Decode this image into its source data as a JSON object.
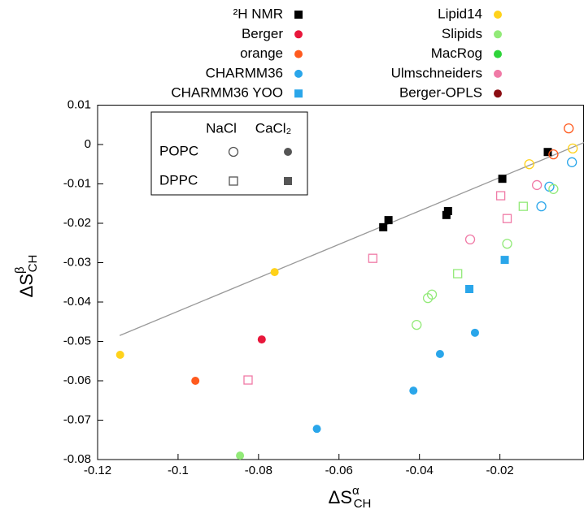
{
  "chart_data": {
    "type": "scatter",
    "x_label": {
      "text": "ΔS",
      "sup": "α",
      "sub": "CH"
    },
    "y_label": {
      "text": "ΔS",
      "sup": "β",
      "sub": "CH"
    },
    "xlim": [
      -0.12,
      0.0009
    ],
    "ylim": [
      -0.08,
      0.01
    ],
    "xticks": [
      -0.12,
      -0.1,
      -0.08,
      -0.06,
      -0.04,
      -0.02
    ],
    "yticks": [
      0.01,
      0,
      -0.01,
      -0.02,
      -0.03,
      -0.04,
      -0.05,
      -0.06,
      -0.07,
      -0.08
    ],
    "fit_line": {
      "color": "#999999",
      "x": [
        -0.1145,
        0.0009
      ],
      "values": [
        -0.0485,
        0.0005
      ]
    },
    "marker_legend": {
      "columns": [
        "NaCl",
        "CaCl₂"
      ],
      "rows": [
        "POPC",
        "DPPC"
      ],
      "markers": [
        [
          "open-circle",
          "filled-circle"
        ],
        [
          "open-square",
          "filled-square"
        ]
      ]
    },
    "series": [
      {
        "name": "²H NMR",
        "color": "#000000",
        "marker": "filled-square",
        "x": [
          -0.0081,
          -0.0194,
          -0.0333,
          -0.0329,
          -0.0477,
          -0.049
        ],
        "values": [
          -0.0019,
          -0.0087,
          -0.0179,
          -0.0169,
          -0.0192,
          -0.021
        ],
        "markers": [
          "filled-square",
          "filled-square",
          "filled-square",
          "filled-square",
          "filled-square",
          "filled-square"
        ]
      },
      {
        "name": "Berger",
        "color": "#e8173b",
        "marker": "filled-circle",
        "x": [
          -0.0792
        ],
        "values": [
          -0.0495
        ],
        "markers": [
          "filled-circle"
        ]
      },
      {
        "name": "orange",
        "color": "#ff5a1e",
        "marker": "filled-circle",
        "x": [
          -0.0957,
          -0.0029,
          -0.0067
        ],
        "values": [
          -0.06,
          0.0041,
          -0.0025
        ],
        "markers": [
          "filled-circle",
          "open-circle",
          "open-circle"
        ]
      },
      {
        "name": "CHARMM36",
        "color": "#2aa6ea",
        "marker": "filled-circle",
        "x": [
          -0.0655,
          -0.0415,
          -0.0349,
          -0.0262,
          -0.0077,
          -0.0097,
          -0.0021
        ],
        "values": [
          -0.0722,
          -0.0625,
          -0.0532,
          -0.0478,
          -0.0107,
          -0.0157,
          -0.0045
        ],
        "markers": [
          "filled-circle",
          "filled-circle",
          "filled-circle",
          "filled-circle",
          "open-circle",
          "open-circle",
          "open-circle"
        ]
      },
      {
        "name": "CHARMM36 YOO",
        "color": "#2aa6ea",
        "marker": "filled-square",
        "x": [
          -0.0188,
          -0.0276
        ],
        "values": [
          -0.0293,
          -0.0367
        ],
        "markers": [
          "filled-square",
          "filled-square"
        ]
      },
      {
        "name": "Lipid14",
        "color": "#ffd21a",
        "marker": "filled-circle",
        "x": [
          -0.1144,
          -0.076,
          -0.0127,
          -0.0019
        ],
        "values": [
          -0.0534,
          -0.0324,
          -0.005,
          -0.001
        ],
        "markers": [
          "filled-circle",
          "filled-circle",
          "open-circle",
          "open-circle"
        ]
      },
      {
        "name": "Slipids",
        "color": "#92ea78",
        "marker": "filled-circle",
        "x": [
          -0.0846,
          -0.0407,
          -0.0379,
          -0.0369,
          -0.0182,
          -0.0067,
          -0.0305,
          -0.0142
        ],
        "values": [
          -0.079,
          -0.0458,
          -0.039,
          -0.0381,
          -0.0252,
          -0.0113,
          -0.0328,
          -0.0157
        ],
        "markers": [
          "filled-circle",
          "open-circle",
          "open-circle",
          "open-circle",
          "open-circle",
          "open-circle",
          "open-square",
          "open-square"
        ]
      },
      {
        "name": "MacRog",
        "color": "#2ed43a",
        "marker": "filled-circle",
        "x": [],
        "values": [],
        "markers": []
      },
      {
        "name": "Ulmschneiders",
        "color": "#f07aa6",
        "marker": "filled-circle",
        "x": [
          -0.0826,
          -0.0516,
          -0.0198,
          -0.0182,
          -0.0274,
          -0.0108
        ],
        "values": [
          -0.0598,
          -0.0289,
          -0.013,
          -0.0188,
          -0.0241,
          -0.0103
        ],
        "markers": [
          "open-square",
          "open-square",
          "open-square",
          "open-square",
          "open-circle",
          "open-circle"
        ]
      },
      {
        "name": "Berger-OPLS",
        "color": "#8b0d12",
        "marker": "filled-circle",
        "x": [],
        "values": [],
        "markers": []
      }
    ]
  }
}
